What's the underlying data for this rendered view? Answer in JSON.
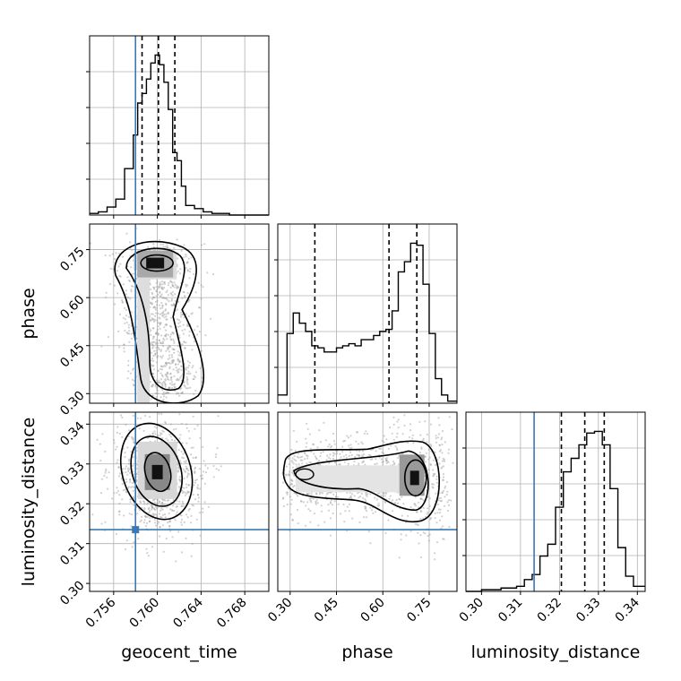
{
  "chart_data": {
    "type": "corner",
    "parameters": [
      "geocent_time",
      "phase",
      "luminosity_distance"
    ],
    "truth_color": "#3b78b4",
    "truths": {
      "geocent_time": 0.758,
      "phase": null,
      "luminosity_distance": 0.3135
    },
    "quantile_style": "dashed black",
    "grid": true,
    "marginals": [
      {
        "param": "geocent_time",
        "xlim": [
          0.7538,
          0.7702
        ],
        "xticks": [
          "0.756",
          "0.760",
          "0.764",
          "0.768"
        ],
        "xtick_values": [
          0.756,
          0.76,
          0.764,
          0.768
        ],
        "quantiles": [
          0.7586,
          0.7601,
          0.7616
        ],
        "bin_edges": [
          0.7538,
          0.7546,
          0.7554,
          0.7562,
          0.757,
          0.7578,
          0.7582,
          0.7586,
          0.759,
          0.7594,
          0.7598,
          0.7602,
          0.7606,
          0.761,
          0.7614,
          0.7618,
          0.7622,
          0.7626,
          0.7634,
          0.7642,
          0.765,
          0.7666,
          0.7702
        ],
        "counts": [
          0.01,
          0.02,
          0.05,
          0.1,
          0.29,
          0.5,
          0.7,
          0.76,
          0.85,
          0.95,
          1.0,
          0.94,
          0.83,
          0.66,
          0.39,
          0.34,
          0.18,
          0.06,
          0.04,
          0.02,
          0.01,
          0.0
        ]
      },
      {
        "param": "phase",
        "xlim": [
          0.26,
          0.84
        ],
        "xticks": [
          "0.30",
          "0.45",
          "0.60",
          "0.75"
        ],
        "xtick_values": [
          0.3,
          0.45,
          0.6,
          0.75
        ],
        "quantiles": [
          0.38,
          0.62,
          0.71
        ],
        "bin_edges": [
          0.26,
          0.29,
          0.31,
          0.33,
          0.35,
          0.37,
          0.39,
          0.41,
          0.43,
          0.45,
          0.47,
          0.49,
          0.51,
          0.53,
          0.55,
          0.57,
          0.59,
          0.61,
          0.63,
          0.65,
          0.67,
          0.69,
          0.71,
          0.73,
          0.75,
          0.77,
          0.79,
          0.81,
          0.84
        ],
        "counts": [
          0.04,
          0.34,
          0.44,
          0.39,
          0.35,
          0.28,
          0.27,
          0.25,
          0.25,
          0.27,
          0.28,
          0.29,
          0.28,
          0.31,
          0.31,
          0.33,
          0.35,
          0.36,
          0.45,
          0.64,
          0.69,
          0.78,
          0.77,
          0.58,
          0.34,
          0.12,
          0.04,
          0.01
        ]
      },
      {
        "param": "luminosity_distance",
        "xlim": [
          0.296,
          0.342
        ],
        "xticks": [
          "0.30",
          "0.31",
          "0.32",
          "0.33",
          "0.34"
        ],
        "xtick_values": [
          0.3,
          0.31,
          0.32,
          0.33,
          0.34
        ],
        "quantiles": [
          0.3205,
          0.3265,
          0.3315
        ],
        "bin_edges": [
          0.296,
          0.3,
          0.305,
          0.309,
          0.311,
          0.313,
          0.315,
          0.317,
          0.319,
          0.321,
          0.323,
          0.325,
          0.327,
          0.329,
          0.331,
          0.333,
          0.335,
          0.337,
          0.339,
          0.342
        ],
        "counts": [
          0.0,
          0.01,
          0.02,
          0.03,
          0.07,
          0.1,
          0.21,
          0.28,
          0.5,
          0.71,
          0.79,
          0.87,
          0.94,
          0.95,
          0.87,
          0.61,
          0.26,
          0.09,
          0.03
        ]
      }
    ],
    "panels_2d": [
      {
        "x": "geocent_time",
        "y": "phase",
        "xlim": [
          0.7538,
          0.7702
        ],
        "ylim": [
          0.27,
          0.83
        ],
        "yticks": [
          "0.30",
          "0.45",
          "0.60",
          "0.75"
        ],
        "ytick_values": [
          0.3,
          0.45,
          0.6,
          0.75
        ],
        "mode": [
          0.7598,
          0.708
        ]
      },
      {
        "x": "geocent_time",
        "y": "luminosity_distance",
        "xlim": [
          0.7538,
          0.7702
        ],
        "ylim": [
          0.298,
          0.343
        ],
        "yticks": [
          "0.30",
          "0.31",
          "0.32",
          "0.33",
          "0.34"
        ],
        "ytick_values": [
          0.3,
          0.31,
          0.32,
          0.33,
          0.34
        ],
        "mode": [
          0.76,
          0.3275
        ]
      },
      {
        "x": "phase",
        "y": "luminosity_distance",
        "xlim": [
          0.26,
          0.84
        ],
        "ylim": [
          0.298,
          0.343
        ],
        "mode": [
          0.7,
          0.3265
        ]
      }
    ]
  }
}
